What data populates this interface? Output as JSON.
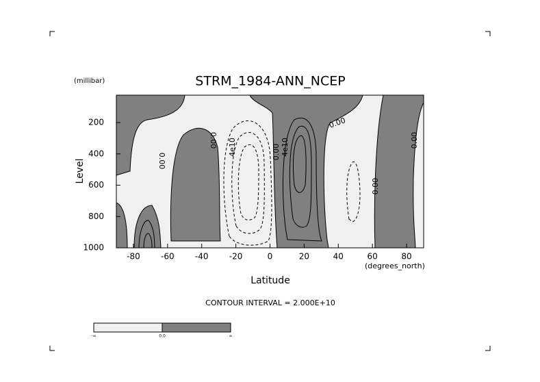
{
  "chart_data": {
    "type": "contour",
    "title": "STRM_1984-ANN_NCEP",
    "y_unit": "(millibar)",
    "y_label": "Level",
    "x_label": "Latitude",
    "x_unit": "(degrees_north)",
    "xlim": [
      -90,
      90
    ],
    "xticks": [
      -80,
      -60,
      -40,
      -20,
      0,
      20,
      40,
      60,
      80
    ],
    "ylim": [
      1000,
      25
    ],
    "yticks": [
      200,
      400,
      600,
      800,
      1000
    ],
    "contour_labels": [
      "0.00",
      "0.00",
      "4e10",
      "0.00",
      "4e10",
      "0.00",
      "0.00",
      "0.00"
    ],
    "contour_interval": "CONTOUR INTERVAL = 2.000E+10",
    "colorbar": {
      "labels": [
        "-∞",
        "0.0",
        "∞"
      ],
      "colors": [
        "#f0f0f0",
        "#808080"
      ]
    }
  }
}
